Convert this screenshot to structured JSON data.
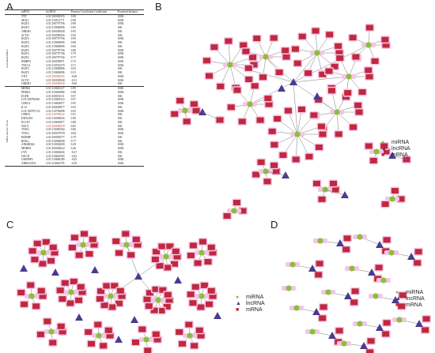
{
  "panels": {
    "A": "A",
    "B": "B",
    "C": "C",
    "D": "D"
  },
  "table": {
    "headers": [
      "mRNA",
      "lncRNA",
      "Pearson Correlation Coefficient",
      "Proximal distance"
    ],
    "group_labels": [
      "Correlated DEGs",
      "DEGs specific TCLs"
    ],
    "rows": [
      [
        "TNT",
        "LOC100050355",
        "0.98",
        "100K"
      ],
      [
        "SKIL1",
        "LOC110551771",
        "0.98",
        "100K"
      ],
      [
        "IKZF2",
        "LOC100797766",
        "0.98",
        "100K"
      ],
      [
        "IKZF2",
        "LOC110600896",
        "0.95",
        "10K"
      ],
      [
        "OREM1",
        "LOC100050928",
        "0.95",
        "10K"
      ],
      [
        "SCYD",
        "LOC100050926",
        "0.95",
        "10K"
      ],
      [
        "IKZF2",
        "LOC100797766",
        "0.90",
        "100K"
      ],
      [
        "IKZF2",
        "LOC110600896",
        "0.88",
        "10K"
      ],
      [
        "IKZF2",
        "LOC110600896",
        "0.84",
        "10K"
      ],
      [
        "IKZF2",
        "LOC100797766",
        "0.80",
        "100K"
      ],
      [
        "IKZF2",
        "LOC100797766",
        "0.79",
        "100K"
      ],
      [
        "IKZF2",
        "LOC100797766",
        "0.77",
        "100K"
      ],
      [
        "HMBP4",
        "LOC100050871",
        "0.72",
        "100K"
      ],
      [
        "TNU14",
        "LOC110552370",
        "0.71",
        "100K"
      ],
      [
        "IKZF2",
        "LOC110600896",
        "0.63",
        "10K"
      ],
      [
        "IKZF2",
        "LOC110600896",
        "0.51",
        "10K"
      ],
      [
        "UNT",
        "LOC100050355",
        "-0.49",
        "100K"
      ],
      [
        "SCYD",
        "LOC100050928",
        "-0.51",
        "100K"
      ],
      [
        "OREM1",
        "LOC100050928",
        "-0.60",
        "10K"
      ],
      [
        "MDM4",
        "LOC110602527",
        "0.99",
        "100K"
      ],
      [
        "PPARG",
        "LOC110605886",
        "0.98",
        "100K"
      ],
      [
        "EGFR",
        "LOC100051511",
        "0.97",
        "10K"
      ],
      [
        "LOC100796081",
        "LOC110605314",
        "0.97",
        "100K"
      ],
      [
        "CREG1",
        "LOC110602877",
        "0.95",
        "100K"
      ],
      [
        "IL13",
        "LOC100605877",
        "0.93",
        "10K"
      ],
      [
        "LOC100797133",
        "LOC110796088",
        "0.92",
        "100K"
      ],
      [
        "UPHA1",
        "LOC110796522",
        "0.91",
        "10K"
      ],
      [
        "EMX2OS",
        "LOC110058656",
        "0.90",
        "10K"
      ],
      [
        "PCLTO",
        "LOC110605877",
        "0.88",
        "10K"
      ],
      [
        "NOCT",
        "LOC100050878",
        "0.85",
        "10K"
      ],
      [
        "TNXU",
        "LOC110050564",
        "0.86",
        "100K"
      ],
      [
        "TNXU",
        "LOC100057978",
        "0.84",
        "100K"
      ],
      [
        "HORBP",
        "LOC100050577",
        "0.79",
        "10K"
      ],
      [
        "BOK2",
        "LOC110590698",
        "0.77",
        "10K"
      ],
      [
        "ANKRD46",
        "LOC110054658",
        "0.49",
        "100K"
      ],
      [
        "MDHP4",
        "LOC100050622",
        "0.46",
        "100K"
      ],
      [
        "LYN",
        "LOC110602604",
        "-0.27",
        "10K"
      ],
      [
        "NUCD",
        "LOC110603505",
        "-0.43",
        "10K"
      ],
      [
        "GMOBP3",
        "LOC110606189",
        "-0.45",
        "100K"
      ],
      [
        "ARHGAP24",
        "LOC110602795",
        "-0.50",
        "100K"
      ]
    ]
  },
  "legend": {
    "items": [
      "miRNA",
      "lncRNA",
      "mRNA"
    ]
  },
  "colors": {
    "mirna": "#8bbf3c",
    "lncrna": "#4b3b8f",
    "mrna": "#c0283e",
    "halo": "#f4c6e6",
    "edge": "#7a7a7a"
  }
}
